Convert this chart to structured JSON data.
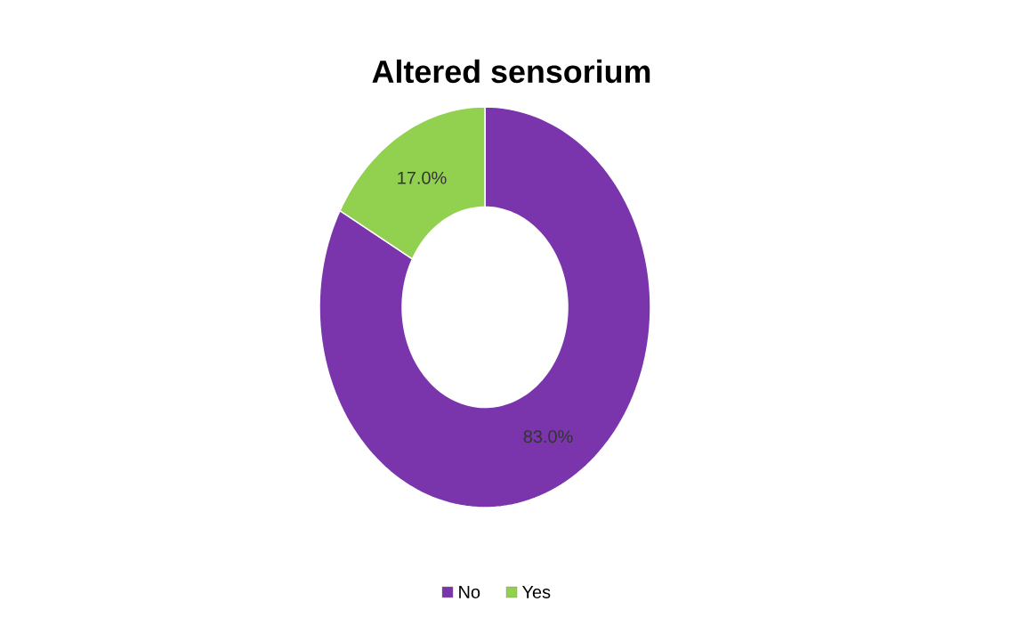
{
  "chart_data": {
    "type": "donut",
    "title": "Altered sensorium",
    "categories": [
      "No",
      "Yes"
    ],
    "values": [
      83.0,
      17.0
    ],
    "colors": [
      "#7a35ad",
      "#92d050"
    ],
    "value_labels": [
      "83.0%",
      "17.0%"
    ],
    "legend": "bottom"
  }
}
